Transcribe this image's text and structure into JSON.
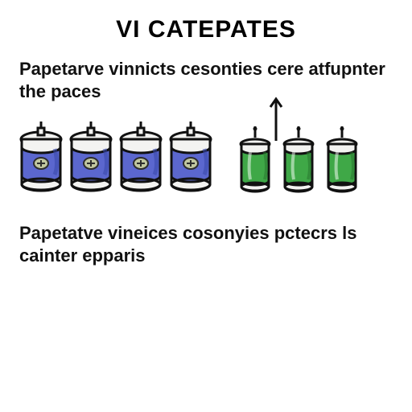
{
  "title": {
    "text": "VI CATEPATES",
    "fontsize": 30
  },
  "subtitle_top": {
    "text": "Papetarve vinnicts cesonties cere atfupnter the paces",
    "fontsize": 22
  },
  "subtitle_bottom": {
    "text": "Papetatve vineices cosonyies pctecrs ls cainter epparis",
    "fontsize": 22
  },
  "colors": {
    "body_blue_fill": "#5b67ce",
    "body_blue_shadow": "#3b4aab",
    "body_green_fill": "#3fa847",
    "body_green_shadow": "#2a7a31",
    "cap_fill": "#f3f3f1",
    "cap_stroke": "#111111",
    "outline": "#111111",
    "symbol_fill": "#c1c7a0",
    "symbol_stroke": "#2d2d2d",
    "bg": "#ffffff"
  },
  "layout": {
    "blue_count": 4,
    "green_count": 3,
    "blue_width": 54,
    "blue_height": 92,
    "green_width": 40,
    "green_height": 84,
    "stroke_width": 3
  }
}
